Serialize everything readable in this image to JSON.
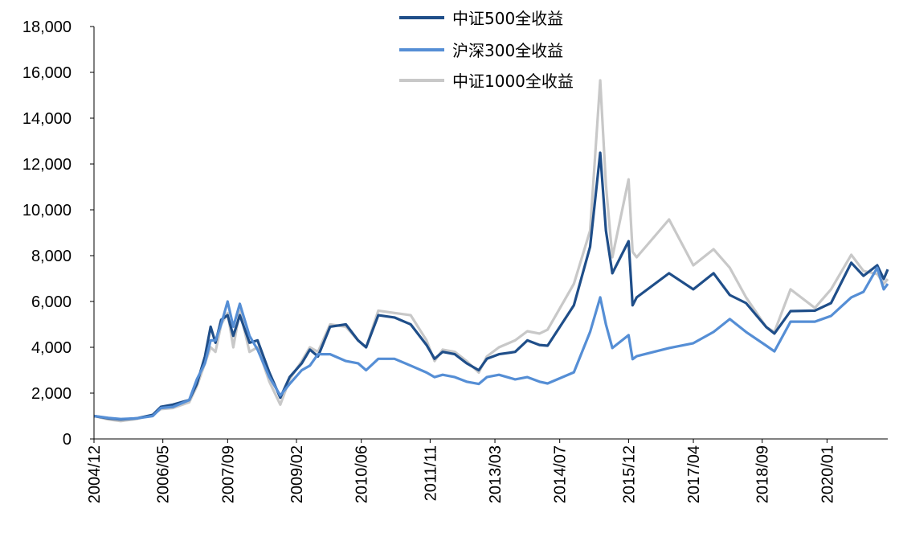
{
  "chart_data": {
    "type": "line",
    "title": "",
    "xlabel": "",
    "ylabel": "",
    "x_unit": "months since 2004/12",
    "xlim": [
      0,
      196
    ],
    "ylim": [
      0,
      18000
    ],
    "y_ticks": [
      0,
      2000,
      4000,
      6000,
      8000,
      10000,
      12000,
      14000,
      16000,
      18000
    ],
    "y_tick_labels": [
      "0",
      "2,000",
      "4,000",
      "6,000",
      "8,000",
      "10,000",
      "12,000",
      "14,000",
      "16,000",
      "18,000"
    ],
    "x_ticks": [
      0,
      17,
      33,
      50,
      66,
      83,
      99,
      115,
      132,
      148,
      165,
      181
    ],
    "x_tick_labels": [
      "2004/12",
      "2006/05",
      "2007/09",
      "2009/02",
      "2010/06",
      "2011/11",
      "2013/03",
      "2014/07",
      "2015/12",
      "2017/04",
      "2018/09",
      "2020/01"
    ],
    "grid": false,
    "legend_position": "top-center",
    "x": [
      0,
      3.6,
      6.6,
      10.5,
      14.5,
      16.5,
      19.5,
      23.5,
      25.4,
      27.4,
      28.8,
      30,
      31.4,
      33,
      34.4,
      36,
      38.4,
      40.4,
      43.3,
      46,
      48.3,
      51.3,
      53.3,
      55.3,
      58.3,
      62.2,
      65.2,
      67.2,
      70.2,
      74.2,
      78.2,
      82.1,
      84.1,
      86.1,
      89.1,
      92,
      95,
      97,
      100,
      104,
      107,
      110,
      112,
      118.5,
      122.5,
      125,
      126.4,
      128,
      132,
      133,
      134,
      142,
      148,
      153,
      157,
      161,
      166,
      168,
      172,
      178,
      182,
      187,
      190,
      193.4,
      195,
      196
    ],
    "series": [
      {
        "name": "中证1000全收益",
        "color": "#C8C8C8",
        "values": [
          1000,
          850,
          780,
          870,
          1050,
          1300,
          1350,
          1600,
          2300,
          3300,
          4000,
          3800,
          5000,
          5500,
          4000,
          5600,
          3800,
          4000,
          2500,
          1500,
          2600,
          3400,
          4000,
          3800,
          5000,
          4900,
          4300,
          4000,
          5600,
          5500,
          5400,
          4300,
          3400,
          3900,
          3800,
          3400,
          2900,
          3600,
          4000,
          4300,
          4700,
          4600,
          4770,
          6770,
          9090,
          15650,
          11090,
          7930,
          11330,
          8170,
          7930,
          9580,
          7580,
          8280,
          7470,
          6180,
          4880,
          4670,
          6530,
          5720,
          6530,
          8040,
          7330,
          7200,
          6770,
          6980
        ]
      },
      {
        "name": "中证500全收益",
        "color": "#1F4E89",
        "values": [
          1000,
          900,
          850,
          900,
          1050,
          1400,
          1500,
          1700,
          2400,
          3600,
          4900,
          4200,
          5200,
          5400,
          4500,
          5400,
          4200,
          4300,
          2900,
          1800,
          2700,
          3300,
          3900,
          3600,
          4900,
          5000,
          4300,
          4000,
          5400,
          5300,
          5000,
          4100,
          3500,
          3800,
          3700,
          3300,
          3000,
          3500,
          3700,
          3800,
          4300,
          4100,
          4070,
          5830,
          8390,
          12490,
          9090,
          7230,
          8630,
          5830,
          6180,
          7230,
          6530,
          7230,
          6280,
          5930,
          4880,
          4600,
          5580,
          5600,
          5930,
          7690,
          7120,
          7580,
          6980,
          7400
        ]
      },
      {
        "name": "沪深300全收益",
        "color": "#558ED5",
        "values": [
          1000,
          920,
          870,
          900,
          1000,
          1350,
          1400,
          1700,
          2600,
          3300,
          4300,
          4300,
          5000,
          6000,
          4900,
          5900,
          4500,
          3900,
          2700,
          1900,
          2400,
          3000,
          3200,
          3700,
          3700,
          3400,
          3300,
          3000,
          3500,
          3500,
          3200,
          2900,
          2700,
          2800,
          2700,
          2500,
          2400,
          2700,
          2800,
          2600,
          2700,
          2500,
          2420,
          2910,
          4670,
          6180,
          5000,
          3970,
          4530,
          3480,
          3610,
          3970,
          4180,
          4670,
          5230,
          4670,
          4070,
          3820,
          5120,
          5120,
          5370,
          6180,
          6420,
          7470,
          6530,
          6770
        ]
      }
    ]
  }
}
